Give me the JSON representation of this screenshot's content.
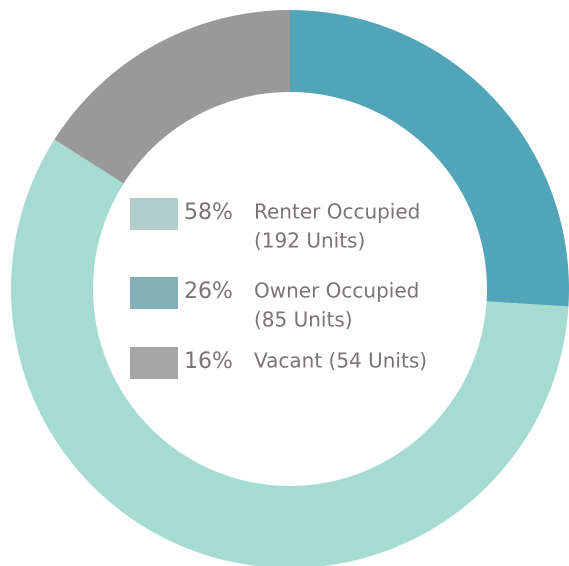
{
  "chart_data": {
    "type": "donut",
    "series": [
      {
        "name": [
          "Renter Occupied",
          "(192 Units)"
        ],
        "value": 58,
        "value_label": "58%",
        "color": "#a6dbd0",
        "legend_color": "#b0cfca"
      },
      {
        "name": [
          "Owner Occupied",
          "(85 Units)"
        ],
        "value": 26,
        "value_label": "26%",
        "color": "#52a5b8",
        "legend_color": "#84b0b8"
      },
      {
        "name": [
          "Vacant (54 Units)"
        ],
        "value": 16,
        "value_label": "16%",
        "color": "#999999",
        "legend_color": "#a6a6a6"
      }
    ]
  }
}
